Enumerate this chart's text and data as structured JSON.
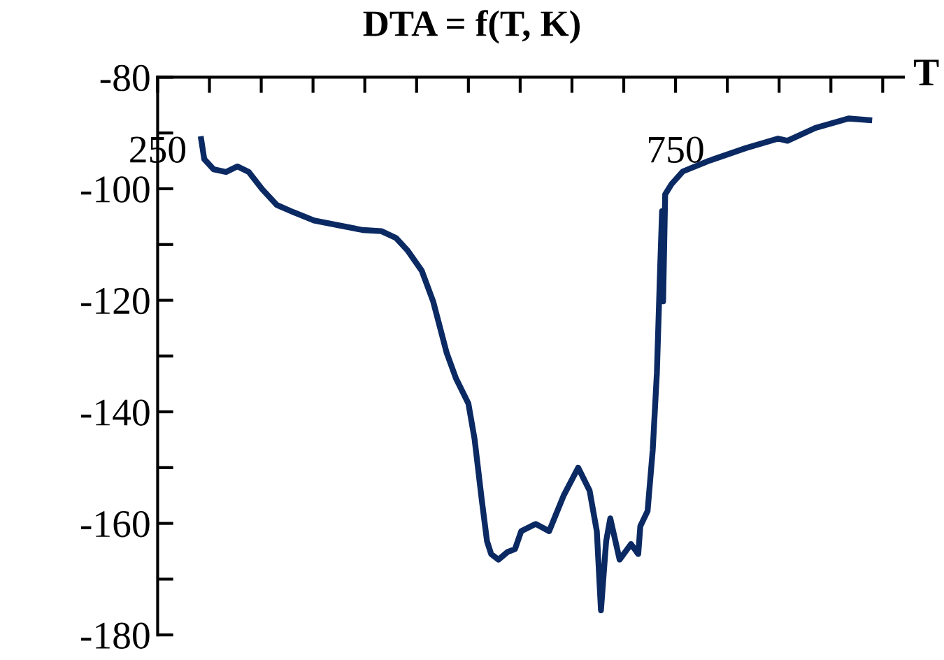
{
  "chart_data": {
    "type": "line",
    "title": "DTA = f(T, K)",
    "xlabel": "T",
    "x": [
      292,
      295,
      304,
      316,
      327,
      338,
      351,
      365,
      381,
      401,
      426,
      448,
      466,
      480,
      491,
      505,
      516,
      529,
      538,
      550,
      556,
      563,
      568,
      572,
      579,
      588,
      595,
      601,
      615,
      628,
      633,
      642,
      656,
      667,
      674,
      678,
      683,
      687,
      696,
      707,
      714,
      716,
      723,
      728,
      732,
      735,
      737,
      738,
      740,
      746,
      757,
      782,
      818,
      849,
      858,
      885,
      917,
      937
    ],
    "series": [
      {
        "color": "#0b2a63",
        "values": [
          -91.1,
          -94.7,
          -96.5,
          -97.0,
          -96.0,
          -97.0,
          -100.1,
          -102.9,
          -104.2,
          -105.7,
          -106.6,
          -107.4,
          -107.6,
          -108.8,
          -111.0,
          -114.7,
          -120.2,
          -129.4,
          -134.0,
          -138.5,
          -144.9,
          -155.9,
          -163.2,
          -165.5,
          -166.5,
          -165.1,
          -164.6,
          -161.4,
          -160.1,
          -161.4,
          -159.1,
          -155.0,
          -150.0,
          -154.1,
          -161.4,
          -175.6,
          -163.2,
          -159.1,
          -166.5,
          -163.7,
          -165.5,
          -160.5,
          -157.8,
          -146.8,
          -133.0,
          -115.0,
          -104.0,
          -120.2,
          -101.0,
          -99.2,
          -96.9,
          -95.0,
          -92.7,
          -91.0,
          -91.4,
          -89.1,
          -87.4,
          -87.7
        ]
      }
    ],
    "xlim": [
      250,
      970
    ],
    "ylim": [
      -180,
      -80
    ],
    "xticks": [
      250,
      {
        "value": 300,
        "label": null
      },
      {
        "value": 350,
        "label": null
      },
      {
        "value": 400,
        "label": null
      },
      {
        "value": 450,
        "label": null
      },
      {
        "value": 500,
        "label": null
      },
      {
        "value": 550,
        "label": null
      },
      {
        "value": 600,
        "label": null
      },
      {
        "value": 650,
        "label": null
      },
      {
        "value": 700,
        "label": null
      },
      750,
      {
        "value": 800,
        "label": null
      },
      {
        "value": 850,
        "label": null
      },
      {
        "value": 900,
        "label": null
      },
      {
        "value": 950,
        "label": null
      }
    ],
    "yticks": [
      -80,
      {
        "value": -90,
        "label": null
      },
      -100,
      {
        "value": -110,
        "label": null
      },
      -120,
      {
        "value": -130,
        "label": null
      },
      -140,
      {
        "value": -150,
        "label": null
      },
      -160,
      {
        "value": -170,
        "label": null
      },
      -180
    ],
    "grid": false,
    "legend": false,
    "marker": "none",
    "line_style": "solid"
  }
}
